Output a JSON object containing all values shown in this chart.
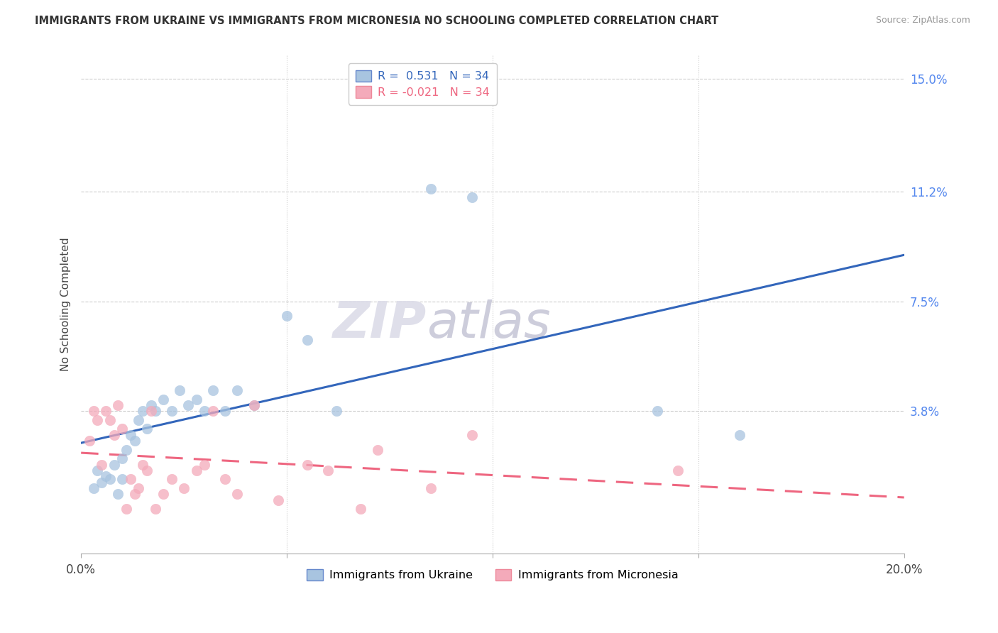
{
  "title": "IMMIGRANTS FROM UKRAINE VS IMMIGRANTS FROM MICRONESIA NO SCHOOLING COMPLETED CORRELATION CHART",
  "source": "Source: ZipAtlas.com",
  "ylabel": "No Schooling Completed",
  "xmin": 0.0,
  "xmax": 0.2,
  "ymin": -0.01,
  "ymax": 0.158,
  "r_ukraine": 0.531,
  "n_ukraine": 34,
  "r_micronesia": -0.021,
  "n_micronesia": 34,
  "ukraine_color": "#A8C4E0",
  "micronesia_color": "#F4AABA",
  "ukraine_line_color": "#3366BB",
  "micronesia_line_color": "#EE6680",
  "watermark_zip": "ZIP",
  "watermark_atlas": "atlas",
  "ukraine_x": [
    0.003,
    0.004,
    0.005,
    0.006,
    0.007,
    0.008,
    0.009,
    0.01,
    0.01,
    0.011,
    0.012,
    0.013,
    0.014,
    0.015,
    0.016,
    0.017,
    0.018,
    0.02,
    0.022,
    0.024,
    0.026,
    0.028,
    0.03,
    0.032,
    0.035,
    0.038,
    0.042,
    0.05,
    0.055,
    0.062,
    0.085,
    0.095,
    0.14,
    0.16
  ],
  "ukraine_y": [
    0.012,
    0.018,
    0.014,
    0.016,
    0.015,
    0.02,
    0.01,
    0.022,
    0.015,
    0.025,
    0.03,
    0.028,
    0.035,
    0.038,
    0.032,
    0.04,
    0.038,
    0.042,
    0.038,
    0.045,
    0.04,
    0.042,
    0.038,
    0.045,
    0.038,
    0.045,
    0.04,
    0.07,
    0.062,
    0.038,
    0.113,
    0.11,
    0.038,
    0.03
  ],
  "micronesia_x": [
    0.002,
    0.003,
    0.004,
    0.005,
    0.006,
    0.007,
    0.008,
    0.009,
    0.01,
    0.011,
    0.012,
    0.013,
    0.014,
    0.015,
    0.016,
    0.017,
    0.018,
    0.02,
    0.022,
    0.025,
    0.028,
    0.03,
    0.032,
    0.035,
    0.038,
    0.042,
    0.048,
    0.055,
    0.06,
    0.068,
    0.072,
    0.085,
    0.095,
    0.145
  ],
  "micronesia_y": [
    0.028,
    0.038,
    0.035,
    0.02,
    0.038,
    0.035,
    0.03,
    0.04,
    0.032,
    0.005,
    0.015,
    0.01,
    0.012,
    0.02,
    0.018,
    0.038,
    0.005,
    0.01,
    0.015,
    0.012,
    0.018,
    0.02,
    0.038,
    0.015,
    0.01,
    0.04,
    0.008,
    0.02,
    0.018,
    0.005,
    0.025,
    0.012,
    0.03,
    0.018
  ],
  "ytick_vals": [
    0.038,
    0.075,
    0.112,
    0.15
  ],
  "ytick_labels": [
    "3.8%",
    "7.5%",
    "11.2%",
    "15.0%"
  ],
  "xtick_vals": [
    0.0,
    0.05,
    0.1,
    0.15,
    0.2
  ],
  "xtick_labels": [
    "0.0%",
    "",
    "",
    "",
    "20.0%"
  ]
}
